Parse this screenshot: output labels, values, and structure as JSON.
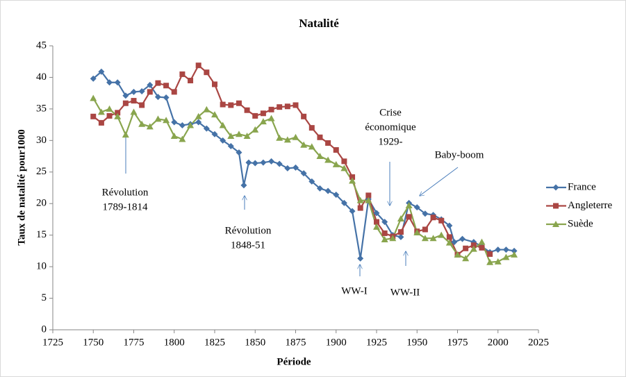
{
  "chart_data": {
    "type": "line",
    "title": "Natalité",
    "x_label": "Période",
    "y_label": "Taux de natalité pour1000",
    "xlim": [
      1725,
      2025
    ],
    "xticks": [
      1725,
      1750,
      1775,
      1800,
      1825,
      1850,
      1875,
      1900,
      1925,
      1950,
      1975,
      2000,
      2025
    ],
    "ylim": [
      0,
      45
    ],
    "yticks": [
      0,
      5,
      10,
      15,
      20,
      25,
      30,
      35,
      40,
      45
    ],
    "grid": false,
    "legend": "right",
    "series": [
      {
        "name": "France",
        "color": "#4572a7",
        "marker": "diamond",
        "x": [
          1750,
          1755,
          1760,
          1765,
          1770,
          1775,
          1780,
          1785,
          1790,
          1795,
          1800,
          1805,
          1810,
          1815,
          1820,
          1825,
          1830,
          1835,
          1840,
          1843,
          1846,
          1850,
          1855,
          1860,
          1865,
          1870,
          1875,
          1880,
          1885,
          1890,
          1895,
          1900,
          1905,
          1910,
          1915,
          1920,
          1925,
          1930,
          1935,
          1940,
          1945,
          1950,
          1955,
          1960,
          1965,
          1970,
          1973,
          1978,
          1985,
          1990,
          1995,
          2000,
          2005,
          2010
        ],
        "values": [
          39.8,
          40.9,
          39.2,
          39.2,
          37.1,
          37.7,
          37.8,
          38.8,
          36.9,
          36.8,
          32.9,
          32.4,
          32.6,
          32.9,
          31.9,
          31.0,
          30.0,
          29.1,
          28.1,
          22.9,
          26.5,
          26.4,
          26.5,
          26.7,
          26.3,
          25.6,
          25.7,
          24.8,
          23.5,
          22.4,
          22.0,
          21.4,
          20.1,
          18.8,
          11.3,
          20.7,
          18.5,
          17.1,
          15.0,
          14.7,
          20.1,
          19.4,
          18.4,
          18.2,
          17.5,
          16.5,
          13.9,
          14.4,
          13.9,
          13.2,
          12.3,
          12.7,
          12.7,
          12.5
        ]
      },
      {
        "name": "Angleterre",
        "color": "#aa4643",
        "marker": "square",
        "x": [
          1750,
          1755,
          1760,
          1765,
          1770,
          1775,
          1780,
          1785,
          1790,
          1795,
          1800,
          1805,
          1810,
          1815,
          1820,
          1825,
          1830,
          1835,
          1840,
          1845,
          1850,
          1855,
          1860,
          1865,
          1870,
          1875,
          1880,
          1885,
          1890,
          1895,
          1900,
          1905,
          1910,
          1915,
          1920,
          1925,
          1930,
          1935,
          1940,
          1945,
          1950,
          1955,
          1960,
          1965,
          1970,
          1975,
          1980,
          1985,
          1990,
          1995
        ],
        "values": [
          33.8,
          32.8,
          33.9,
          34.4,
          35.9,
          36.3,
          35.6,
          37.7,
          39.1,
          38.7,
          37.7,
          40.5,
          39.5,
          41.9,
          40.8,
          38.9,
          35.7,
          35.6,
          35.9,
          34.8,
          33.9,
          34.3,
          34.9,
          35.3,
          35.4,
          35.6,
          33.8,
          32.0,
          30.5,
          29.6,
          28.5,
          26.7,
          24.2,
          19.3,
          21.3,
          17.1,
          15.3,
          14.8,
          15.5,
          17.9,
          15.6,
          15.9,
          17.8,
          17.3,
          14.7,
          11.9,
          12.9,
          13.4,
          13.0,
          12.0
        ]
      },
      {
        "name": "Suède",
        "color": "#89a54e",
        "marker": "triangle",
        "x": [
          1750,
          1755,
          1760,
          1765,
          1770,
          1775,
          1780,
          1785,
          1790,
          1795,
          1800,
          1805,
          1810,
          1815,
          1820,
          1825,
          1830,
          1835,
          1840,
          1845,
          1850,
          1855,
          1860,
          1865,
          1870,
          1875,
          1880,
          1885,
          1890,
          1895,
          1900,
          1905,
          1910,
          1915,
          1920,
          1925,
          1930,
          1935,
          1940,
          1945,
          1950,
          1955,
          1960,
          1965,
          1970,
          1975,
          1980,
          1985,
          1990,
          1995,
          2000,
          2005,
          2010
        ],
        "values": [
          36.7,
          34.5,
          35.0,
          33.8,
          30.9,
          34.5,
          32.6,
          32.2,
          33.4,
          33.2,
          30.7,
          30.2,
          32.4,
          33.8,
          34.9,
          34.1,
          32.4,
          30.7,
          31.0,
          30.7,
          31.7,
          33.0,
          33.5,
          30.4,
          30.1,
          30.5,
          29.3,
          29.0,
          27.5,
          26.9,
          26.2,
          25.6,
          23.6,
          20.5,
          20.5,
          16.3,
          14.3,
          14.5,
          17.6,
          19.7,
          15.4,
          14.5,
          14.5,
          15.0,
          13.8,
          11.9,
          11.3,
          12.8,
          13.9,
          10.7,
          10.8,
          11.5,
          11.9
        ]
      }
    ],
    "annotations": [
      {
        "lines": [
          "Révolution",
          "1789-1814"
        ]
      },
      {
        "lines": [
          "Révolution",
          "1848-51"
        ]
      },
      {
        "lines": [
          "WW-I"
        ]
      },
      {
        "lines": [
          "WW-II"
        ]
      },
      {
        "lines": [
          "Crise",
          "économique",
          "1929-"
        ]
      },
      {
        "lines": [
          "Baby-boom"
        ]
      }
    ]
  }
}
